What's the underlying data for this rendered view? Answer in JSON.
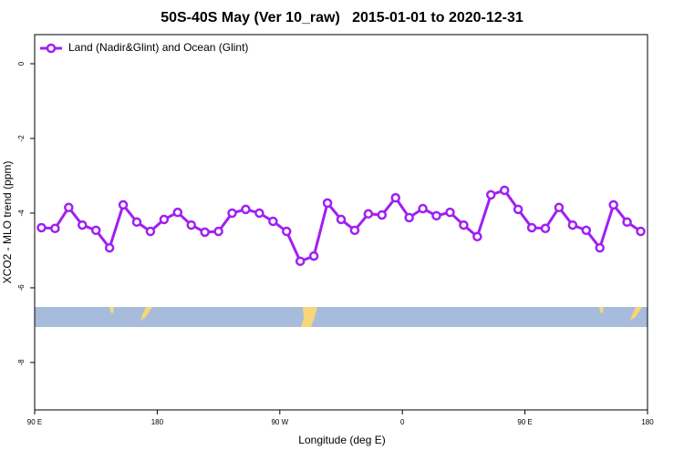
{
  "chart_data": {
    "type": "line",
    "title": "50S-40S May (Ver 10_raw)   2015-01-01 to 2020-12-31",
    "xlabel": "Longitude (deg E)",
    "ylabel": "XCO2 - MLO trend (ppm)",
    "x": [
      95,
      105,
      115,
      125,
      135,
      145,
      155,
      165,
      175,
      185,
      195,
      205,
      215,
      225,
      235,
      245,
      255,
      265,
      275,
      285,
      295,
      305,
      315,
      325,
      335,
      345,
      355,
      365,
      375,
      385,
      395,
      405,
      415,
      425,
      435,
      445,
      455,
      465,
      475,
      485,
      495,
      505,
      515,
      525,
      535
    ],
    "series": [
      {
        "name": "Land (Nadir&Glint) and Ocean (Glint)",
        "color": "#a020f0",
        "values": [
          -4.39,
          -4.41,
          -3.85,
          -4.32,
          -4.46,
          -4.93,
          -3.78,
          -4.24,
          -4.49,
          -4.17,
          -3.98,
          -4.32,
          -4.51,
          -4.49,
          -4.0,
          -3.9,
          -4.0,
          -4.22,
          -4.49,
          -5.29,
          -5.15,
          -3.73,
          -4.17,
          -4.46,
          -4.02,
          -4.05,
          -3.59,
          -4.12,
          -3.88,
          -4.07,
          -3.98,
          -4.32,
          -4.63,
          -3.51,
          -3.39,
          -3.9,
          -4.39,
          -4.41,
          -3.85,
          -4.32,
          -4.46,
          -4.93,
          -3.78,
          -4.24,
          -4.49
        ]
      }
    ],
    "xlim": [
      90,
      540
    ],
    "xticks": [
      {
        "value": 90,
        "label": "90 E"
      },
      {
        "value": 180,
        "label": "180"
      },
      {
        "value": 270,
        "label": "90 W"
      },
      {
        "value": 360,
        "label": "0"
      },
      {
        "value": 450,
        "label": "90 E"
      },
      {
        "value": 540,
        "label": "180"
      }
    ],
    "ylim": [
      -9.27,
      0.78
    ],
    "yticks": [
      0,
      -2,
      -4,
      -6,
      -8
    ],
    "legend": "top-left"
  }
}
